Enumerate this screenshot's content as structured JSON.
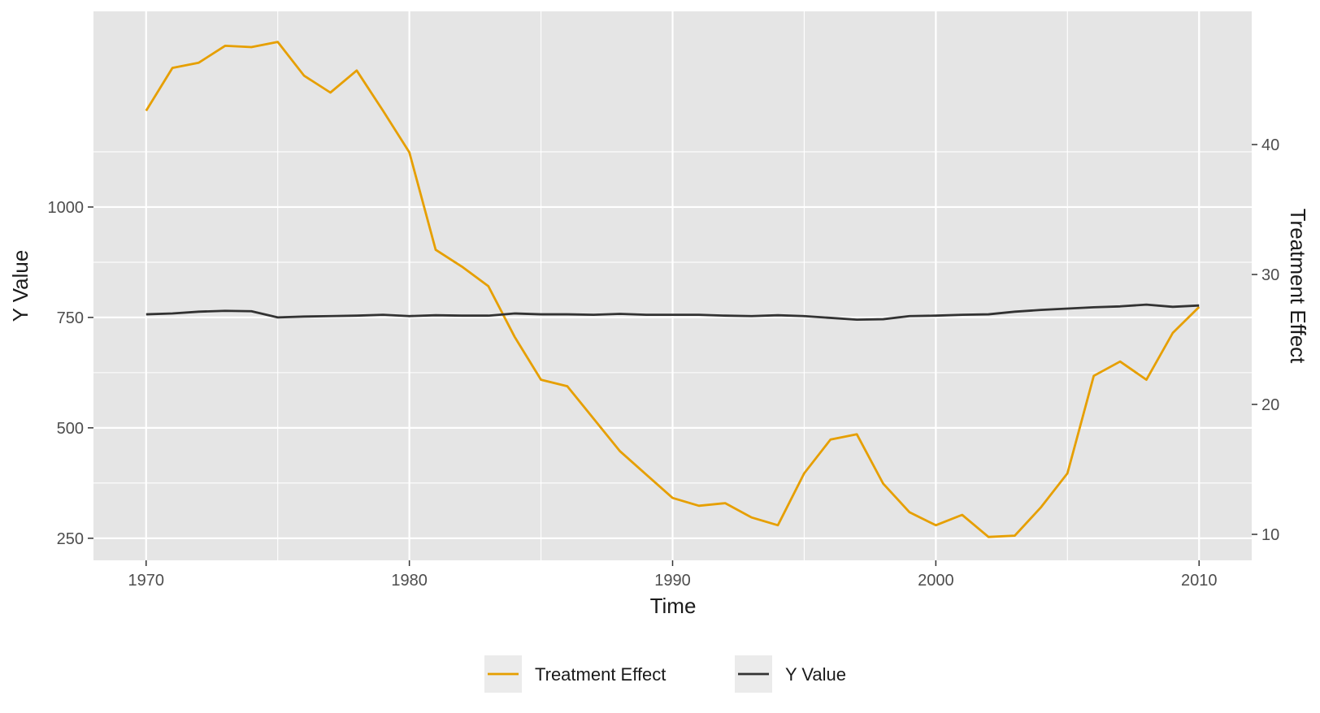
{
  "chart_data": {
    "type": "line",
    "x": [
      1970,
      1971,
      1972,
      1973,
      1974,
      1975,
      1976,
      1977,
      1978,
      1979,
      1980,
      1981,
      1982,
      1983,
      1984,
      1985,
      1986,
      1987,
      1988,
      1989,
      1990,
      1991,
      1992,
      1993,
      1994,
      1995,
      1996,
      1997,
      1998,
      1999,
      2000,
      2001,
      2002,
      2003,
      2004,
      2005,
      2006,
      2007,
      2008,
      2009,
      2010
    ],
    "series": [
      {
        "name": "Treatment Effect",
        "axis": "right",
        "color": "#E69F00",
        "values": [
          42.6,
          45.9,
          46.3,
          47.6,
          47.5,
          47.9,
          45.3,
          44.0,
          45.7,
          42.6,
          39.4,
          31.9,
          30.6,
          29.1,
          25.2,
          21.9,
          21.4,
          18.9,
          16.4,
          14.6,
          12.8,
          12.2,
          12.4,
          11.3,
          10.7,
          14.7,
          17.3,
          17.7,
          13.9,
          11.7,
          10.7,
          11.5,
          9.8,
          9.9,
          12.1,
          14.7,
          22.2,
          23.3,
          21.9,
          25.5,
          27.5
        ]
      },
      {
        "name": "Y Value",
        "axis": "left",
        "color": "#333333",
        "values": [
          757,
          759,
          763,
          765,
          764,
          750,
          752,
          753,
          754,
          756,
          753,
          755,
          754,
          754,
          759,
          757,
          757,
          756,
          758,
          756,
          756,
          756,
          754,
          753,
          755,
          753,
          749,
          745,
          746,
          753,
          754,
          756,
          757,
          763,
          767,
          770,
          773,
          775,
          779,
          774,
          777
        ]
      }
    ],
    "xlabel": "Time",
    "ylabel": "Y Value",
    "y2label": "Treatment Effect",
    "xlim": [
      1968,
      2012
    ],
    "ylim": [
      200,
      1443
    ],
    "y2lim": [
      8,
      50.25
    ],
    "xticks": [
      1970,
      1980,
      1990,
      2000,
      2010
    ],
    "yticks": [
      250,
      500,
      750,
      1000
    ],
    "y2ticks": [
      10,
      20,
      30,
      40
    ],
    "legend_position": "bottom",
    "grid": true,
    "colors": {
      "panel_background": "#E5E5E5",
      "grid": "#FFFFFF",
      "right_axis_title": "#E08B00"
    }
  }
}
